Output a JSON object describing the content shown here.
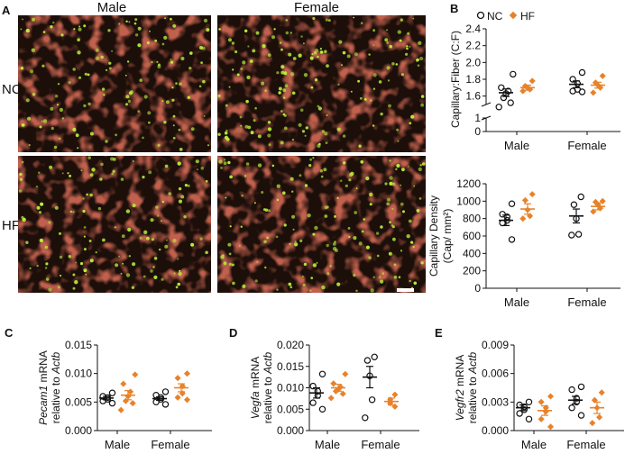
{
  "figure": {
    "panel_a": {
      "letter": "A",
      "col_labels": [
        "Male",
        "Female"
      ],
      "row_labels": [
        "NC",
        "HF"
      ],
      "colors": {
        "tissue_bg": "#1c0e09",
        "fiber_border": "#b0281c",
        "capillary": "#b9f23a",
        "scale_bar": "#ffffff"
      }
    },
    "legend": {
      "nc": "NC",
      "hf": "HF",
      "nc_color": "#111111",
      "hf_color": "#e8822a"
    }
  },
  "chart_data": [
    {
      "panel": "B",
      "type": "scatter",
      "ylabel": "Capillary:Fiber (C:F)",
      "yticks": [
        "0",
        "1",
        "1.6",
        "1.8",
        "2.0",
        "2.2",
        "2.4"
      ],
      "y_break": [
        1,
        1.5
      ],
      "ylim": [
        0,
        2.4
      ],
      "categories": [
        "Male",
        "Female"
      ],
      "series": [
        {
          "name": "NC",
          "groups": [
            [
              1.86,
              1.7,
              1.66,
              1.63,
              1.58,
              1.52,
              1.47
            ],
            [
              1.88,
              1.8,
              1.75,
              1.68,
              1.66,
              1.65
            ]
          ],
          "means": [
            1.64,
            1.74
          ],
          "sem": [
            0.045,
            0.04
          ]
        },
        {
          "name": "HF",
          "groups": [
            [
              1.78,
              1.72,
              1.7,
              1.68,
              1.66
            ],
            [
              1.84,
              1.76,
              1.73,
              1.7,
              1.64
            ]
          ],
          "means": [
            1.7,
            1.73
          ],
          "sem": [
            0.03,
            0.035
          ]
        }
      ]
    },
    {
      "panel": "B2",
      "type": "scatter",
      "ylabel": "Capillary Density",
      "ylabel2": "(Cap/ mm²)",
      "yticks": [
        "0",
        "200",
        "400",
        "600",
        "800",
        "1000",
        "1200"
      ],
      "ylim": [
        0,
        1200
      ],
      "categories": [
        "Male",
        "Female"
      ],
      "series": [
        {
          "name": "NC",
          "groups": [
            [
              970,
              850,
              820,
              780,
              750,
              560
            ],
            [
              1050,
              960,
              800,
              620,
              610
            ]
          ],
          "means": [
            780,
            830
          ],
          "sem": [
            60,
            80
          ]
        },
        {
          "name": "HF",
          "groups": [
            [
              1080,
              1010,
              900,
              830,
              800
            ],
            [
              1000,
              990,
              960,
              920,
              880
            ]
          ],
          "means": [
            910,
            940
          ],
          "sem": [
            60,
            40
          ]
        }
      ]
    },
    {
      "panel": "C",
      "type": "scatter",
      "ylabel_gene": "Pecam1",
      "ylabel_suffix": " mRNA",
      "ylabel2_prefix": "relative to ",
      "ylabel2_gene": "Actb",
      "yticks": [
        "0.000",
        "0.005",
        "0.010",
        "0.015"
      ],
      "ylim": [
        0,
        0.015
      ],
      "categories": [
        "Male",
        "Female"
      ],
      "series": [
        {
          "name": "NC",
          "groups": [
            [
              0.0066,
              0.006,
              0.0058,
              0.0055,
              0.0052,
              0.0048
            ],
            [
              0.0068,
              0.0062,
              0.0058,
              0.0055,
              0.005,
              0.0046
            ]
          ],
          "means": [
            0.0057,
            0.0056
          ],
          "sem": [
            0.0003,
            0.0003
          ]
        },
        {
          "name": "HF",
          "groups": [
            [
              0.0098,
              0.0082,
              0.0068,
              0.006,
              0.0052,
              0.0048,
              0.0036
            ],
            [
              0.01,
              0.0092,
              0.0078,
              0.0065,
              0.0058,
              0.0054
            ]
          ],
          "means": [
            0.0062,
            0.0075
          ],
          "sem": [
            0.0008,
            0.0007
          ]
        }
      ]
    },
    {
      "panel": "D",
      "type": "scatter",
      "ylabel_gene": "Vegfa",
      "ylabel_suffix": " mRNA",
      "ylabel2_prefix": "relative to ",
      "ylabel2_gene": "Actb",
      "yticks": [
        "0.000",
        "0.005",
        "0.010",
        "0.015",
        "0.020"
      ],
      "ylim": [
        0,
        0.02
      ],
      "categories": [
        "Male",
        "Female"
      ],
      "series": [
        {
          "name": "NC",
          "groups": [
            [
              0.0132,
              0.0104,
              0.0092,
              0.0082,
              0.0065,
              0.005
            ],
            [
              0.0172,
              0.0164,
              0.0128,
              0.0072,
              0.003
            ]
          ],
          "means": [
            0.0088,
            0.0125
          ],
          "sem": [
            0.0012,
            0.0025
          ]
        },
        {
          "name": "HF",
          "groups": [
            [
              0.0132,
              0.011,
              0.0102,
              0.0096,
              0.0092,
              0.0086,
              0.0076
            ],
            [
              0.0084,
              0.0072,
              0.0064,
              0.0056
            ]
          ],
          "means": [
            0.01,
            0.0068
          ],
          "sem": [
            0.0008,
            0.0008
          ]
        }
      ]
    },
    {
      "panel": "E",
      "type": "scatter",
      "ylabel_gene": "Vegfr2",
      "ylabel_suffix": " mRNA",
      "ylabel2_prefix": "relative to ",
      "ylabel2_gene": "Actb",
      "yticks": [
        "0.000",
        "0.003",
        "0.006",
        "0.009"
      ],
      "ylim": [
        0,
        0.009
      ],
      "categories": [
        "Male",
        "Female"
      ],
      "series": [
        {
          "name": "NC",
          "groups": [
            [
              0.003,
              0.0027,
              0.0025,
              0.0022,
              0.0018,
              0.0012
            ],
            [
              0.0046,
              0.0043,
              0.0034,
              0.003,
              0.0024,
              0.0016
            ]
          ],
          "means": [
            0.0024,
            0.0032
          ],
          "sem": [
            0.0003,
            0.0004
          ]
        },
        {
          "name": "HF",
          "groups": [
            [
              0.0036,
              0.003,
              0.0024,
              0.002,
              0.0012,
              0.0004
            ],
            [
              0.004,
              0.0032,
              0.0024,
              0.0014,
              0.0008
            ]
          ],
          "means": [
            0.0021,
            0.0024
          ],
          "sem": [
            0.0005,
            0.0006
          ]
        }
      ]
    }
  ]
}
